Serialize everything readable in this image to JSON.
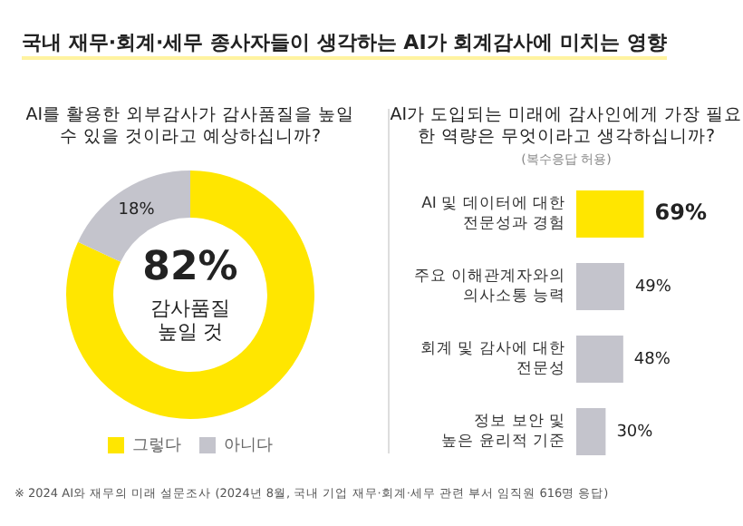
{
  "chart_data": [
    {
      "type": "donut",
      "title": "국내 재무·회계·세무 종사자들이 생각하는 AI가 회계감사에 미치는 영향",
      "subtitle": "AI를 활용한 외부감사가 감사품질을 높일 수 있을 것이라고 예상하십니까?",
      "categories": [
        "그렇다",
        "아니다"
      ],
      "values": [
        82,
        18
      ],
      "colors": [
        "#ffe600",
        "#c4c4cc"
      ],
      "value_labels": [
        "82%",
        "18%"
      ],
      "legend": "bottom",
      "annotations": [
        "감사품질 높일 것"
      ]
    },
    {
      "type": "bar",
      "orientation": "horizontal",
      "title": "AI가 도입되는 미래에 감사인에게 가장 필요한 역량은 무엇이라고 생각하십니까?",
      "subtitle": "(복수응답 허용)",
      "categories": [
        "AI 및 데이터에 대한\n전문성과 경험",
        "주요 이해관계자와의\n의사소통 능력",
        "회계 및 감사에 대한\n전문성",
        "정보 보안 및\n높은 윤리적 기준"
      ],
      "values": [
        69,
        49,
        48,
        30
      ],
      "colors": [
        "#ffe600",
        "#c4c4cc",
        "#c4c4cc",
        "#c4c4cc"
      ],
      "value_labels": [
        "69%",
        "49%",
        "48%",
        "30%"
      ],
      "annotations": [
        "※ 2024 AI와 재무의 미래 설문조사 (2024년 8월, 국내 기업 재무·회계·세무 관련 부서 임직원 616명 응답)"
      ]
    }
  ]
}
